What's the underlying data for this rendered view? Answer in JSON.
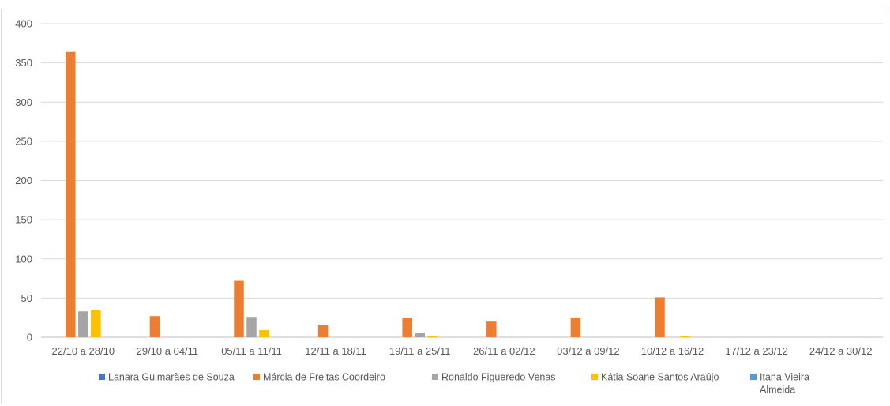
{
  "header_fragment": "",
  "chart_data": {
    "type": "bar",
    "title": "",
    "xlabel": "",
    "ylabel": "",
    "ylim": [
      0,
      400
    ],
    "ytick_step": 50,
    "grid": true,
    "legend_position": "bottom",
    "categories": [
      "22/10 a 28/10",
      "29/10 a 04/11",
      "05/11 a 11/11",
      "12/11 a 18/11",
      "19/11 a 25/11",
      "26/11 a 02/12",
      "03/12 a 09/12",
      "10/12 a 16/12",
      "17/12 a 23/12",
      "24/12 a 30/12"
    ],
    "series": [
      {
        "name": "Lanara Guimarães de Souza",
        "color": "#4472c4",
        "values": [
          0,
          0,
          0,
          0,
          0,
          0,
          0,
          0,
          0,
          0
        ]
      },
      {
        "name": "Márcia de Freitas Coordeiro",
        "color": "#ed7d31",
        "values": [
          364,
          27,
          72,
          16,
          25,
          20,
          25,
          51,
          0,
          0
        ]
      },
      {
        "name": "Ronaldo Figueredo Venas",
        "color": "#a5a5a5",
        "values": [
          33,
          0,
          26,
          0,
          6,
          0,
          0,
          0,
          0,
          0
        ]
      },
      {
        "name": "Kátia Soane Santos Araújo",
        "color": "#ffc000",
        "values": [
          35,
          0,
          9,
          0,
          1,
          0,
          0,
          1,
          0,
          0
        ]
      },
      {
        "name": "Itana Vieira Almeida",
        "color": "#5b9bd5",
        "values": [
          0,
          0,
          0,
          0,
          0,
          0,
          0,
          0,
          0,
          0
        ]
      }
    ]
  }
}
